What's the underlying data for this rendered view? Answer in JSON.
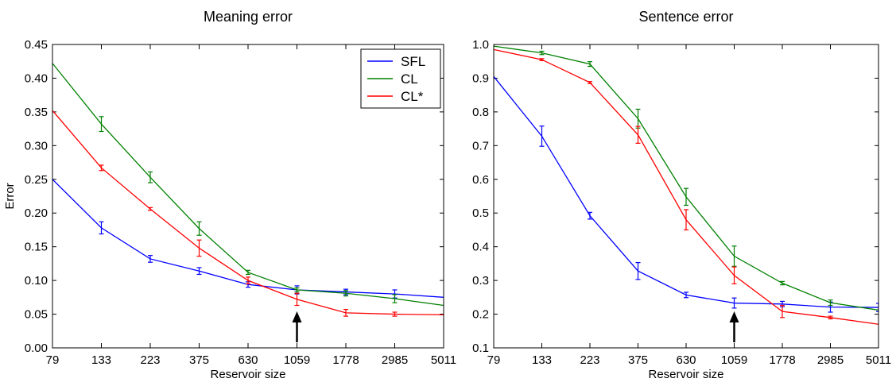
{
  "chart_data": [
    {
      "type": "line",
      "title": "Meaning error",
      "xlabel": "Reservoir size",
      "ylabel": "Error",
      "x_scale": "log",
      "categories": [
        "79",
        "133",
        "223",
        "375",
        "630",
        "1059",
        "1778",
        "2985",
        "5011"
      ],
      "ylim": [
        0.0,
        0.45
      ],
      "yticks": [
        "0.00",
        "0.05",
        "0.10",
        "0.15",
        "0.20",
        "0.25",
        "0.30",
        "0.35",
        "0.40",
        "0.45"
      ],
      "grid": false,
      "legend_position": "top-right",
      "annotation": {
        "type": "arrow",
        "category": "1059"
      },
      "series": [
        {
          "name": "SFL",
          "color": "#0000ff",
          "values": [
            0.25,
            0.178,
            0.132,
            0.114,
            0.094,
            0.086,
            0.083,
            0.08,
            0.075
          ],
          "errors": [
            0.0,
            0.009,
            0.005,
            0.005,
            0.004,
            0.006,
            0.004,
            0.006,
            0.0
          ]
        },
        {
          "name": "CL",
          "color": "#008000",
          "values": [
            0.422,
            0.332,
            0.253,
            0.177,
            0.112,
            0.086,
            0.081,
            0.073,
            0.063
          ],
          "errors": [
            0.0,
            0.011,
            0.008,
            0.01,
            0.003,
            0.003,
            0.004,
            0.006,
            0.0
          ]
        },
        {
          "name": "CL*",
          "color": "#ff0000",
          "values": [
            0.352,
            0.267,
            0.206,
            0.148,
            0.1,
            0.072,
            0.052,
            0.05,
            0.049
          ],
          "errors": [
            0.0,
            0.004,
            0.002,
            0.012,
            0.005,
            0.009,
            0.005,
            0.003,
            0.0
          ]
        }
      ]
    },
    {
      "type": "line",
      "title": "Sentence error",
      "xlabel": "Reservoir size",
      "ylabel": "",
      "x_scale": "log",
      "categories": [
        "79",
        "133",
        "223",
        "375",
        "630",
        "1059",
        "1778",
        "2985",
        "5011"
      ],
      "ylim": [
        0.1,
        1.0
      ],
      "yticks": [
        "0.1",
        "0.2",
        "0.3",
        "0.4",
        "0.5",
        "0.6",
        "0.7",
        "0.8",
        "0.9",
        "1.0"
      ],
      "grid": false,
      "annotation": {
        "type": "arrow",
        "category": "1059"
      },
      "series": [
        {
          "name": "SFL",
          "color": "#0000ff",
          "values": [
            0.905,
            0.728,
            0.492,
            0.328,
            0.257,
            0.233,
            0.23,
            0.221,
            0.22
          ],
          "errors": [
            0.0,
            0.03,
            0.01,
            0.025,
            0.008,
            0.015,
            0.008,
            0.015,
            0.012
          ]
        },
        {
          "name": "CL",
          "color": "#008000",
          "values": [
            0.995,
            0.975,
            0.942,
            0.78,
            0.548,
            0.372,
            0.292,
            0.234,
            0.212
          ],
          "errors": [
            0.0,
            0.005,
            0.007,
            0.028,
            0.025,
            0.03,
            0.005,
            0.008,
            0.0
          ]
        },
        {
          "name": "CL*",
          "color": "#ff0000",
          "values": [
            0.985,
            0.955,
            0.887,
            0.732,
            0.48,
            0.315,
            0.208,
            0.19,
            0.17
          ],
          "errors": [
            0.0,
            0.003,
            0.003,
            0.025,
            0.03,
            0.025,
            0.018,
            0.004,
            0.0
          ]
        }
      ]
    }
  ]
}
